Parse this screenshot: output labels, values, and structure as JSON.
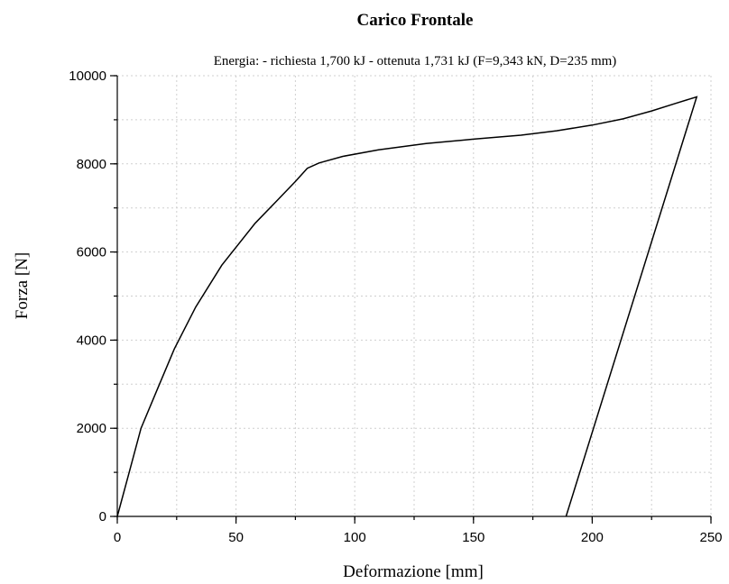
{
  "chart_data": {
    "type": "line",
    "title": "Carico Frontale",
    "subtitle": "Energia: - richiesta 1,700 kJ - ottenuta 1,731 kJ (F=9,343 kN, D=235 mm)",
    "xlabel": "Deformazione [mm]",
    "ylabel": "Forza [N]",
    "xlim": [
      0,
      250
    ],
    "ylim": [
      0,
      10000
    ],
    "xticks": [
      0,
      50,
      100,
      150,
      200,
      250
    ],
    "yticks": [
      0,
      2000,
      4000,
      6000,
      8000,
      10000
    ],
    "xminor_step": 25,
    "yminor_step": 1000,
    "grid": true,
    "series": [
      {
        "values": [
          [
            0,
            0
          ],
          [
            5,
            1000
          ],
          [
            10,
            2000
          ],
          [
            17,
            2900
          ],
          [
            24,
            3800
          ],
          [
            33,
            4750
          ],
          [
            44,
            5700
          ],
          [
            58,
            6650
          ],
          [
            67,
            7150
          ],
          [
            75,
            7600
          ],
          [
            80,
            7900
          ],
          [
            85,
            8020
          ],
          [
            95,
            8170
          ],
          [
            110,
            8320
          ],
          [
            130,
            8460
          ],
          [
            150,
            8560
          ],
          [
            170,
            8650
          ],
          [
            185,
            8750
          ],
          [
            200,
            8880
          ],
          [
            213,
            9020
          ],
          [
            225,
            9200
          ],
          [
            235,
            9370
          ],
          [
            244,
            9520
          ],
          [
            189,
            0
          ]
        ]
      }
    ]
  }
}
